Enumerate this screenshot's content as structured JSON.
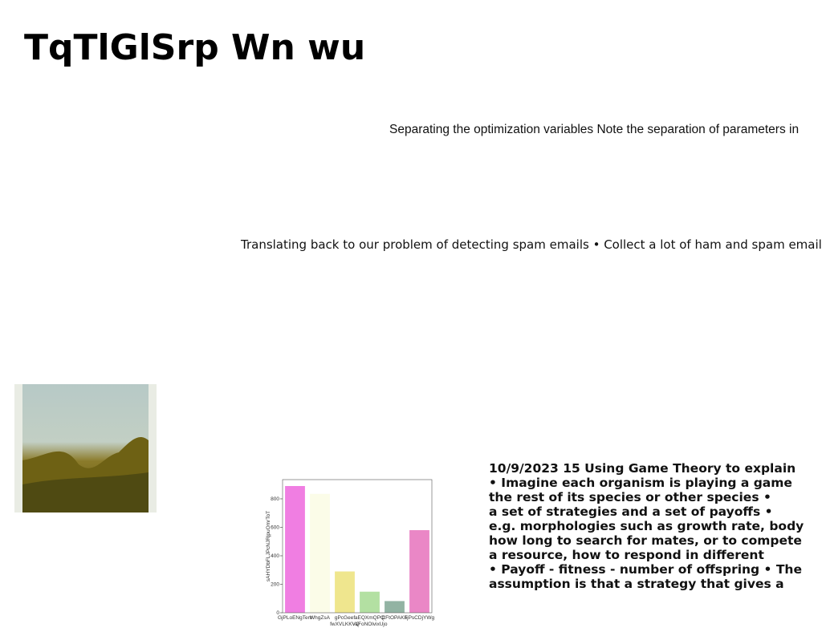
{
  "title": "TqTlGlSrp Wn wu",
  "paragraphs": [
    "Separating the optimization variables Note the separation of parameters in",
    "Translating back to our problem of detecting spam emails • Collect a lot of ham and spam emails"
  ],
  "text_block": [
    "10/9/2023 15 Using Game Theory to explain",
    "• Imagine each organism is playing a game",
    "the rest of its species or other species •",
    "a set of strategies and a set of payoffs •",
    "e.g. morphologies such as growth rate, body",
    "how long to search for mates, or to compete",
    "a resource, how to respond in different",
    "• Payoff - fitness - number of offspring • The",
    "assumption is that a strategy that gives a"
  ],
  "chart_data": {
    "type": "bar",
    "y_label": "sAHYDbFLJPcNJRjpuOmrToT",
    "categories": [
      "GjPLoENgTem",
      "WhgZsA",
      "gPcGeef\nfwXVLKKVQ",
      "aEQXmQPQ\nVaFoNOlvixUjo",
      "CFtOPAKF",
      "sjPsCDjYWg"
    ],
    "values": [
      890,
      835,
      290,
      148,
      82,
      580
    ],
    "colors": [
      "#f07ee2",
      "#fbfce8",
      "#efe68e",
      "#b3e0a2",
      "#92b3a3",
      "#ea87c6"
    ],
    "ylim": [
      0,
      935
    ],
    "yticks": [
      0,
      200,
      400,
      600,
      800
    ]
  }
}
